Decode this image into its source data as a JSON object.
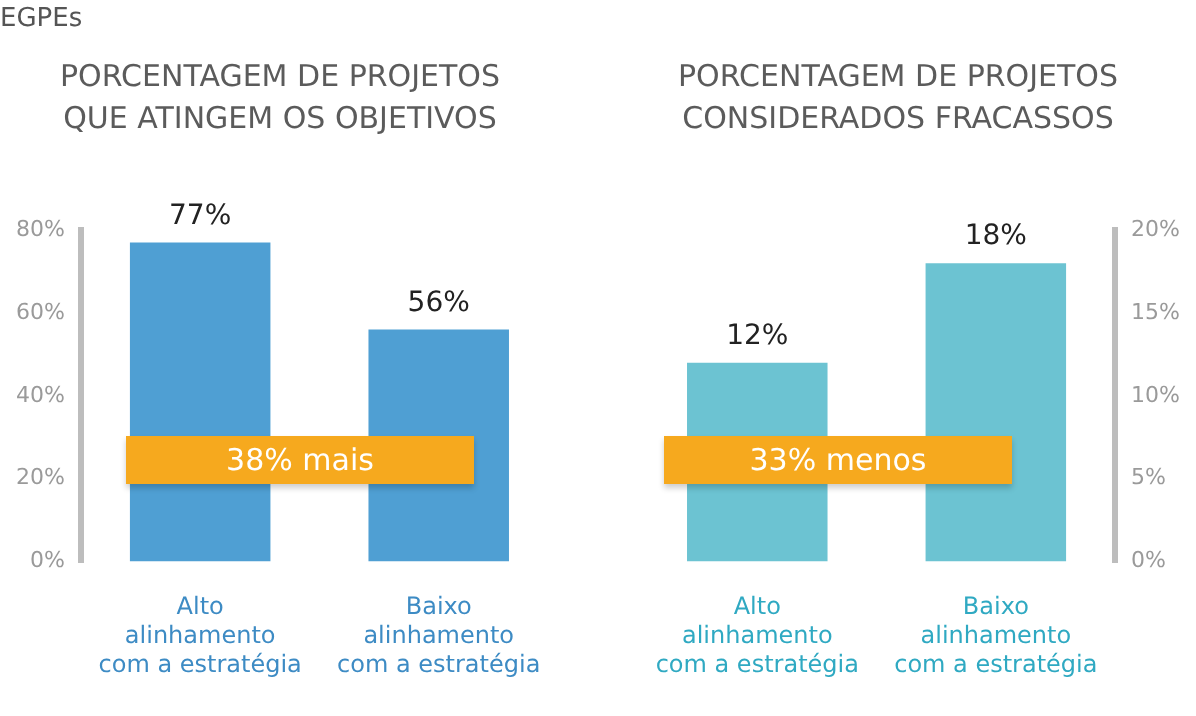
{
  "chart_data": [
    {
      "type": "bar",
      "title": "PORCENTAGEM DE PROJETOS QUE ATINGEM OS OBJETIVOS",
      "annotations": [
        "EGPEs",
        "38% mais"
      ],
      "categories": [
        "Alto alinhamento com a estratégia",
        "Baixo alinhamento com a estratégia"
      ],
      "series": [
        {
          "color": "#4f9fd3",
          "values": [
            77,
            56
          ],
          "value_labels": [
            "77%",
            "56%"
          ]
        }
      ],
      "ylim": [
        0,
        80
      ],
      "yticks": [
        {
          "value": 0,
          "label": "0%"
        },
        {
          "value": 20,
          "label": "20%"
        },
        {
          "value": 40,
          "label": "40%"
        },
        {
          "value": 60,
          "label": "60%"
        },
        {
          "value": 80,
          "label": "80%"
        }
      ],
      "grid": false,
      "legend": false
    },
    {
      "type": "bar",
      "title": "PORCENTAGEM DE PROJETOS CONSIDERADOS FRACASSOS",
      "annotations": [
        "33% menos"
      ],
      "categories": [
        "Alto alinhamento com a estratégia",
        "Baixo alinhamento com a estratégia"
      ],
      "series": [
        {
          "color": "#6cc3d2",
          "values": [
            12,
            18
          ],
          "value_labels": [
            "12%",
            "18%"
          ],
          "axis": "y2"
        }
      ],
      "y2lim": [
        0,
        20
      ],
      "y2ticks": [
        {
          "value": 0,
          "label": "0%"
        },
        {
          "value": 5,
          "label": "5%"
        },
        {
          "value": 10,
          "label": "10%"
        },
        {
          "value": 15,
          "label": "15%"
        },
        {
          "value": 20,
          "label": "20%"
        }
      ],
      "grid": false,
      "legend": false
    }
  ]
}
